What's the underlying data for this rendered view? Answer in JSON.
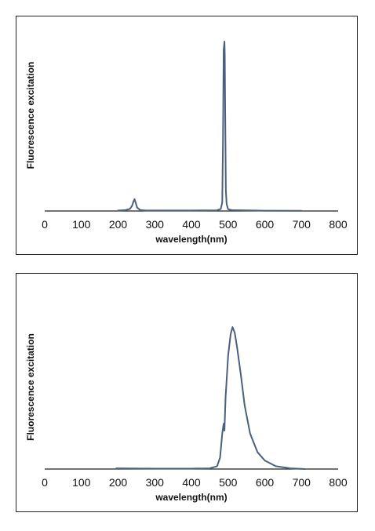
{
  "colors": {
    "series": "#4a607f",
    "axis": "#222222"
  },
  "chart_data": [
    {
      "type": "line",
      "xlabel": "wavelength(nm)",
      "ylabel": "Fluorescence excitation",
      "xlim": [
        0,
        800
      ],
      "ylim": [
        0,
        1
      ],
      "xticks": [
        "0",
        "100",
        "200",
        "300",
        "400",
        "500",
        "600",
        "700",
        "800"
      ],
      "series": [
        {
          "x": [
            200,
            220,
            232,
            238,
            242,
            245,
            248,
            252,
            260,
            275,
            300,
            400,
            470,
            480,
            484,
            486,
            488,
            490,
            491,
            492,
            494,
            496,
            500,
            510,
            600,
            700
          ],
          "y": [
            0.003,
            0.005,
            0.012,
            0.03,
            0.055,
            0.07,
            0.05,
            0.02,
            0.006,
            0.003,
            0.003,
            0.003,
            0.004,
            0.012,
            0.05,
            0.4,
            0.95,
            1.0,
            0.92,
            0.6,
            0.12,
            0.04,
            0.01,
            0.005,
            0.002,
            0.001
          ]
        }
      ]
    },
    {
      "type": "line",
      "xlabel": "wavelength(nm)",
      "ylabel": "Fluorescence excitation",
      "xlim": [
        0,
        800
      ],
      "ylim": [
        0,
        1
      ],
      "xticks": [
        "0",
        "100",
        "200",
        "300",
        "400",
        "500",
        "600",
        "700",
        "800"
      ],
      "series": [
        {
          "x": [
            195,
            300,
            400,
            450,
            470,
            478,
            484,
            488,
            490,
            493,
            500,
            507,
            512,
            518,
            525,
            535,
            545,
            560,
            580,
            600,
            630,
            670,
            710
          ],
          "y": [
            0.005,
            0.003,
            0.003,
            0.005,
            0.02,
            0.08,
            0.25,
            0.32,
            0.27,
            0.5,
            0.8,
            0.95,
            1.0,
            0.96,
            0.85,
            0.66,
            0.45,
            0.25,
            0.12,
            0.06,
            0.02,
            0.005,
            0.0
          ]
        }
      ]
    }
  ]
}
